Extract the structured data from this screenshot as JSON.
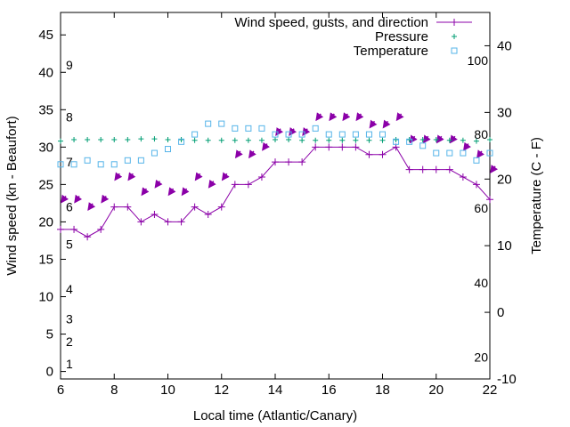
{
  "chart_data": {
    "type": "line",
    "xlabel": "Local time (Atlantic/Canary)",
    "ylabel": "Wind speed (kn - Beaufort)",
    "y2label": "Temperature (C - F)",
    "xlim": [
      6,
      22
    ],
    "ylim": [
      -1,
      48
    ],
    "y2lim": [
      -10,
      45
    ],
    "x_ticks": [
      "6",
      "8",
      "10",
      "12",
      "14",
      "16",
      "18",
      "20",
      "22"
    ],
    "y_ticks": [
      "0",
      "5",
      "10",
      "15",
      "20",
      "25",
      "30",
      "35",
      "40",
      "45"
    ],
    "y2_ticks": [
      "-10",
      "0",
      "10",
      "20",
      "30",
      "40"
    ],
    "fahrenheit_labels": [
      {
        "text": "20",
        "celsius": -6.7
      },
      {
        "text": "40",
        "celsius": 4.4
      },
      {
        "text": "60",
        "celsius": 15.6
      },
      {
        "text": "80",
        "celsius": 26.7
      },
      {
        "text": "100",
        "celsius": 37.8
      }
    ],
    "beaufort_labels": [
      {
        "text": "1",
        "kn": 1
      },
      {
        "text": "2",
        "kn": 4
      },
      {
        "text": "3",
        "kn": 7
      },
      {
        "text": "4",
        "kn": 11
      },
      {
        "text": "5",
        "kn": 17
      },
      {
        "text": "6",
        "kn": 22
      },
      {
        "text": "7",
        "kn": 28
      },
      {
        "text": "8",
        "kn": 34
      },
      {
        "text": "9",
        "kn": 41
      }
    ],
    "legend_placement": "top-right",
    "grid": false,
    "series": [
      {
        "name": "Wind speed, gusts, and direction",
        "color": "#8b00a8",
        "axis": "y",
        "x": [
          6,
          6.5,
          7,
          7.5,
          8,
          8.5,
          9,
          9.5,
          10,
          10.5,
          11,
          11.5,
          12,
          12.5,
          13,
          13.5,
          14,
          14.5,
          15,
          15.5,
          16,
          16.5,
          17,
          17.5,
          18,
          18.5,
          19,
          19.5,
          20,
          20.5,
          21,
          21.5,
          22
        ],
        "values": [
          19,
          19,
          18,
          19,
          22,
          22,
          20,
          21,
          20,
          20,
          22,
          21,
          22,
          25,
          25,
          26,
          28,
          28,
          28,
          30,
          30,
          30,
          30,
          29,
          29,
          30,
          27,
          27,
          27,
          27,
          26,
          25,
          23
        ],
        "gusts": [
          22.5,
          22.5,
          21.5,
          22.5,
          25.5,
          25.5,
          23.5,
          24.5,
          23.5,
          23.5,
          25.5,
          24.5,
          25.5,
          28.5,
          28.5,
          29.5,
          31.5,
          31.5,
          31.5,
          33.5,
          33.5,
          33.5,
          33.5,
          32.5,
          32.5,
          33.5,
          30.5,
          30.5,
          30.5,
          30.5,
          29.5,
          28.5,
          26.5
        ]
      },
      {
        "name": "Pressure",
        "color": "#009e73",
        "axis": "y",
        "x": [
          6,
          6.5,
          7,
          7.5,
          8,
          8.5,
          9,
          9.5,
          10,
          10.5,
          11,
          11.5,
          12,
          12.5,
          13,
          13.5,
          14,
          14.5,
          15,
          15.5,
          16,
          16.5,
          17,
          17.5,
          18,
          18.5,
          19,
          19.5,
          20,
          20.5,
          21,
          21.5,
          22
        ],
        "values": [
          30.8,
          31,
          31,
          31,
          31,
          31,
          31.1,
          31.1,
          31,
          31,
          30.9,
          30.9,
          30.9,
          30.9,
          30.9,
          30.9,
          31,
          31,
          30.9,
          30.9,
          30.9,
          30.9,
          30.9,
          30.9,
          30.9,
          31,
          31,
          31,
          31,
          30.9,
          30.9,
          30.8,
          31
        ]
      },
      {
        "name": "Temperature",
        "color": "#56b4e9",
        "axis": "y2",
        "x": [
          6,
          6.5,
          7,
          7.5,
          8,
          8.5,
          9,
          9.5,
          10,
          10.5,
          11,
          11.5,
          12,
          12.5,
          13,
          13.5,
          14,
          14.5,
          15,
          15.5,
          16,
          16.5,
          17,
          17.5,
          18,
          18.5,
          19,
          19.5,
          20,
          20.5,
          21,
          21.5,
          22
        ],
        "values": [
          22.2,
          22.2,
          22.8,
          22.2,
          22.2,
          22.8,
          22.8,
          23.9,
          24.5,
          25.6,
          26.7,
          28.3,
          28.3,
          27.6,
          27.6,
          27.6,
          26.7,
          26.7,
          26.7,
          27.6,
          26.7,
          26.7,
          26.7,
          26.7,
          26.7,
          25.6,
          25.6,
          25,
          23.9,
          23.9,
          23.9,
          22.8,
          23.9
        ]
      }
    ]
  }
}
